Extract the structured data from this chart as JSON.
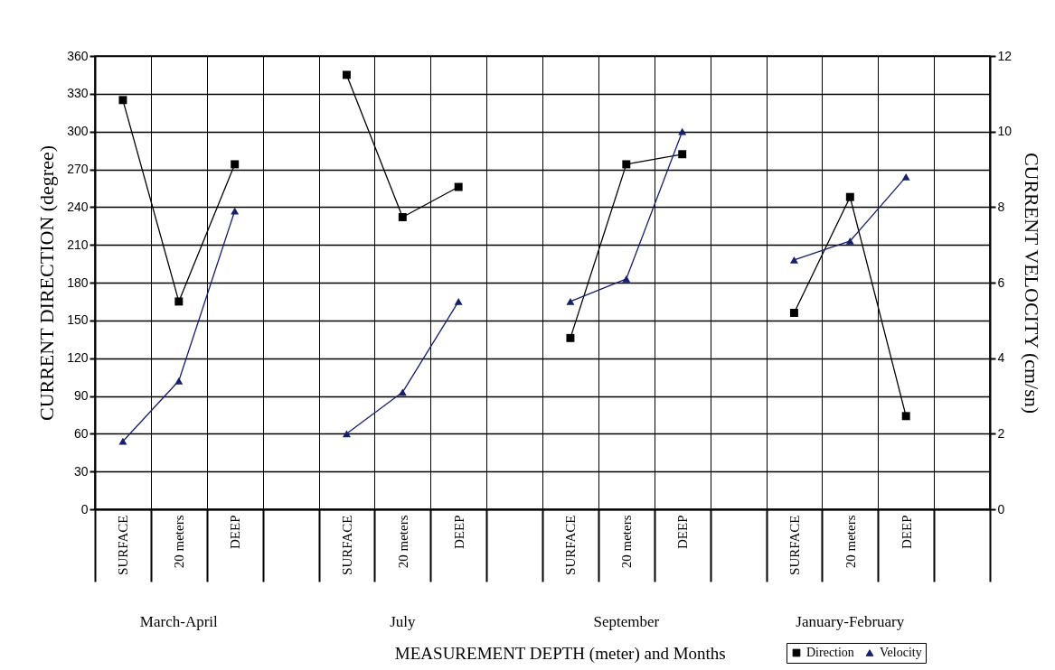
{
  "chart_data": {
    "type": "line",
    "xlabel": "MEASUREMENT DEPTH (meter) and Months",
    "ylabel": "CURRENT DIRECTION (degree)",
    "y2label": "CURRENT VELOCITY (cm/sn)",
    "categories": [
      "SURFACE",
      "20 meters",
      "DEEP",
      null,
      "SURFACE",
      "20 meters",
      "DEEP",
      null,
      "SURFACE",
      "20 meters",
      "DEEP",
      null,
      "SURFACE",
      "20 meters",
      "DEEP",
      null
    ],
    "series": [
      {
        "name": "Direction",
        "color": "#000000",
        "marker": "square",
        "values": [
          325,
          165,
          274,
          null,
          345,
          232,
          256,
          null,
          136,
          274,
          282,
          null,
          156,
          248,
          74,
          null
        ]
      },
      {
        "name": "Velocity",
        "color": "#14206e",
        "marker": "triangle",
        "axis": "y2",
        "values": [
          1.8,
          3.4,
          7.9,
          null,
          2.0,
          3.1,
          5.5,
          null,
          5.5,
          6.1,
          10,
          null,
          6.6,
          7.1,
          8.8,
          null
        ]
      }
    ],
    "ylim": [
      0,
      360
    ],
    "yticks": [
      0,
      30,
      60,
      90,
      120,
      150,
      180,
      210,
      240,
      270,
      300,
      330,
      360
    ],
    "y2lim": [
      0,
      12
    ],
    "y2ticks": [
      0,
      2,
      4,
      6,
      8,
      10,
      12
    ],
    "annotations": [
      "March-April",
      "July",
      "September",
      "January-February"
    ],
    "grid": true,
    "legend": "bottom right"
  }
}
